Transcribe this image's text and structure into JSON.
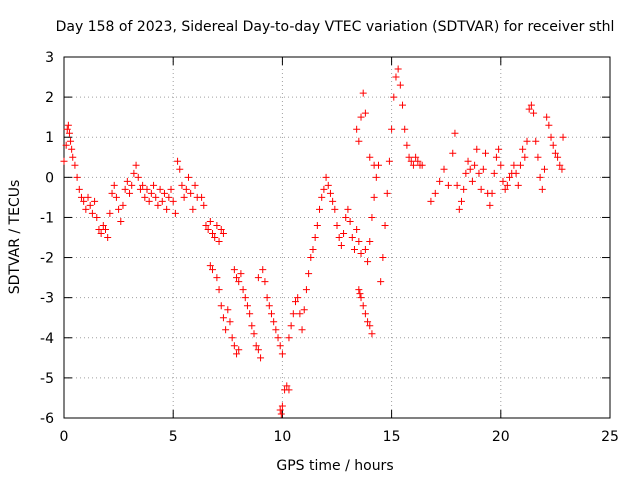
{
  "chart_data": {
    "type": "scatter",
    "title": "Day 158 of 2023, Sidereal Day-to-day VTEC variation (SDTVAR) for receiver sthl",
    "xlabel": "GPS time / hours",
    "ylabel": "SDTVAR / TECUs",
    "xlim": [
      0,
      25
    ],
    "ylim": [
      -6,
      3
    ],
    "xticks": [
      0,
      5,
      10,
      15,
      20,
      25
    ],
    "yticks": [
      -6,
      -5,
      -4,
      -3,
      -2,
      -1,
      0,
      1,
      2,
      3
    ],
    "grid": true,
    "marker": "+",
    "color": "#ff0000",
    "series": [
      {
        "name": "sthl",
        "points": [
          [
            0.0,
            0.4
          ],
          [
            0.1,
            0.8
          ],
          [
            0.15,
            1.2
          ],
          [
            0.2,
            1.3
          ],
          [
            0.25,
            1.1
          ],
          [
            0.3,
            0.9
          ],
          [
            0.35,
            0.7
          ],
          [
            0.4,
            0.5
          ],
          [
            0.5,
            0.3
          ],
          [
            0.6,
            0.0
          ],
          [
            0.7,
            -0.3
          ],
          [
            0.8,
            -0.5
          ],
          [
            0.9,
            -0.6
          ],
          [
            1.0,
            -0.8
          ],
          [
            1.1,
            -0.5
          ],
          [
            1.2,
            -0.7
          ],
          [
            1.3,
            -0.9
          ],
          [
            1.4,
            -0.6
          ],
          [
            1.5,
            -1.0
          ],
          [
            1.6,
            -1.3
          ],
          [
            1.7,
            -1.4
          ],
          [
            1.8,
            -1.2
          ],
          [
            1.9,
            -1.3
          ],
          [
            2.0,
            -1.5
          ],
          [
            2.1,
            -0.9
          ],
          [
            2.2,
            -0.4
          ],
          [
            2.3,
            -0.2
          ],
          [
            2.4,
            -0.5
          ],
          [
            2.5,
            -0.8
          ],
          [
            2.6,
            -1.1
          ],
          [
            2.7,
            -0.7
          ],
          [
            2.8,
            -0.3
          ],
          [
            2.9,
            -0.1
          ],
          [
            3.0,
            -0.4
          ],
          [
            3.1,
            -0.2
          ],
          [
            3.2,
            0.1
          ],
          [
            3.3,
            0.3
          ],
          [
            3.4,
            0.0
          ],
          [
            3.5,
            -0.3
          ],
          [
            3.6,
            -0.2
          ],
          [
            3.7,
            -0.5
          ],
          [
            3.8,
            -0.3
          ],
          [
            3.9,
            -0.6
          ],
          [
            4.0,
            -0.4
          ],
          [
            4.1,
            -0.2
          ],
          [
            4.2,
            -0.5
          ],
          [
            4.3,
            -0.7
          ],
          [
            4.4,
            -0.3
          ],
          [
            4.5,
            -0.6
          ],
          [
            4.6,
            -0.4
          ],
          [
            4.7,
            -0.8
          ],
          [
            4.8,
            -0.5
          ],
          [
            4.9,
            -0.3
          ],
          [
            5.0,
            -0.6
          ],
          [
            5.1,
            -0.9
          ],
          [
            5.2,
            0.4
          ],
          [
            5.3,
            0.2
          ],
          [
            5.4,
            -0.2
          ],
          [
            5.5,
            -0.5
          ],
          [
            5.6,
            -0.3
          ],
          [
            5.7,
            0.0
          ],
          [
            5.8,
            -0.4
          ],
          [
            5.9,
            -0.8
          ],
          [
            6.0,
            -0.2
          ],
          [
            6.1,
            -0.5
          ],
          [
            6.3,
            -0.5
          ],
          [
            6.4,
            -0.7
          ],
          [
            6.5,
            -1.2
          ],
          [
            6.6,
            -1.3
          ],
          [
            6.7,
            -1.1
          ],
          [
            6.8,
            -1.4
          ],
          [
            6.9,
            -1.5
          ],
          [
            7.0,
            -1.2
          ],
          [
            7.1,
            -1.6
          ],
          [
            7.2,
            -1.3
          ],
          [
            7.3,
            -1.4
          ],
          [
            6.7,
            -2.2
          ],
          [
            6.8,
            -2.3
          ],
          [
            7.0,
            -2.5
          ],
          [
            7.1,
            -2.8
          ],
          [
            7.2,
            -3.2
          ],
          [
            7.3,
            -3.5
          ],
          [
            7.4,
            -3.8
          ],
          [
            7.5,
            -3.3
          ],
          [
            7.6,
            -3.6
          ],
          [
            7.7,
            -4.0
          ],
          [
            7.8,
            -4.2
          ],
          [
            7.9,
            -4.4
          ],
          [
            8.0,
            -4.3
          ],
          [
            7.8,
            -2.3
          ],
          [
            7.9,
            -2.5
          ],
          [
            8.0,
            -2.6
          ],
          [
            8.1,
            -2.4
          ],
          [
            8.2,
            -2.8
          ],
          [
            8.3,
            -3.0
          ],
          [
            8.4,
            -3.2
          ],
          [
            8.5,
            -3.4
          ],
          [
            8.6,
            -3.7
          ],
          [
            8.7,
            -3.9
          ],
          [
            8.8,
            -4.2
          ],
          [
            8.9,
            -4.3
          ],
          [
            9.0,
            -4.5
          ],
          [
            8.9,
            -2.5
          ],
          [
            9.1,
            -2.3
          ],
          [
            9.2,
            -2.6
          ],
          [
            9.3,
            -3.0
          ],
          [
            9.4,
            -3.2
          ],
          [
            9.5,
            -3.4
          ],
          [
            9.6,
            -3.6
          ],
          [
            9.7,
            -3.8
          ],
          [
            9.8,
            -4.0
          ],
          [
            9.9,
            -4.2
          ],
          [
            10.0,
            -4.4
          ],
          [
            9.9,
            -5.8
          ],
          [
            9.95,
            -5.9
          ],
          [
            10.0,
            -5.7
          ],
          [
            10.1,
            -5.3
          ],
          [
            10.2,
            -5.2
          ],
          [
            10.3,
            -5.3
          ],
          [
            10.3,
            -4.0
          ],
          [
            10.4,
            -3.7
          ],
          [
            10.5,
            -3.4
          ],
          [
            10.6,
            -3.1
          ],
          [
            10.7,
            -3.0
          ],
          [
            10.8,
            -3.4
          ],
          [
            10.9,
            -3.8
          ],
          [
            11.0,
            -3.3
          ],
          [
            11.1,
            -2.8
          ],
          [
            11.2,
            -2.4
          ],
          [
            11.3,
            -2.0
          ],
          [
            11.4,
            -1.8
          ],
          [
            11.5,
            -1.5
          ],
          [
            11.6,
            -1.2
          ],
          [
            11.7,
            -0.8
          ],
          [
            11.8,
            -0.5
          ],
          [
            11.9,
            -0.3
          ],
          [
            12.0,
            0.0
          ],
          [
            12.1,
            -0.2
          ],
          [
            12.2,
            -0.4
          ],
          [
            12.3,
            -0.6
          ],
          [
            12.4,
            -0.8
          ],
          [
            12.5,
            -1.2
          ],
          [
            12.6,
            -1.5
          ],
          [
            12.7,
            -1.7
          ],
          [
            12.8,
            -1.4
          ],
          [
            12.9,
            -1.0
          ],
          [
            13.0,
            -0.8
          ],
          [
            13.1,
            -1.1
          ],
          [
            13.2,
            -1.5
          ],
          [
            13.3,
            -1.8
          ],
          [
            13.4,
            -1.3
          ],
          [
            13.5,
            -1.6
          ],
          [
            13.6,
            -1.9
          ],
          [
            13.5,
            -2.8
          ],
          [
            13.55,
            -2.9
          ],
          [
            13.6,
            -3.0
          ],
          [
            13.7,
            -3.2
          ],
          [
            13.8,
            -3.4
          ],
          [
            13.9,
            -3.6
          ],
          [
            14.0,
            -3.7
          ],
          [
            14.1,
            -3.9
          ],
          [
            13.8,
            -1.8
          ],
          [
            13.9,
            -2.1
          ],
          [
            14.0,
            -1.6
          ],
          [
            14.1,
            -1.0
          ],
          [
            14.2,
            -0.5
          ],
          [
            14.3,
            0.0
          ],
          [
            14.4,
            0.3
          ],
          [
            13.4,
            1.2
          ],
          [
            13.5,
            0.9
          ],
          [
            13.6,
            1.5
          ],
          [
            13.7,
            2.1
          ],
          [
            13.8,
            1.6
          ],
          [
            14.0,
            0.5
          ],
          [
            14.2,
            0.3
          ],
          [
            14.5,
            -2.6
          ],
          [
            14.6,
            -2.0
          ],
          [
            14.7,
            -1.2
          ],
          [
            14.8,
            -0.4
          ],
          [
            14.9,
            0.4
          ],
          [
            15.0,
            1.2
          ],
          [
            15.1,
            2.0
          ],
          [
            15.2,
            2.5
          ],
          [
            15.3,
            2.7
          ],
          [
            15.4,
            2.3
          ],
          [
            15.5,
            1.8
          ],
          [
            15.6,
            1.2
          ],
          [
            15.7,
            0.8
          ],
          [
            15.8,
            0.5
          ],
          [
            15.9,
            0.4
          ],
          [
            16.0,
            0.3
          ],
          [
            16.1,
            0.5
          ],
          [
            16.2,
            0.4
          ],
          [
            16.3,
            0.3
          ],
          [
            16.4,
            0.3
          ],
          [
            16.8,
            -0.6
          ],
          [
            17.0,
            -0.4
          ],
          [
            17.2,
            -0.1
          ],
          [
            17.4,
            0.2
          ],
          [
            17.6,
            -0.2
          ],
          [
            17.8,
            0.6
          ],
          [
            17.9,
            1.1
          ],
          [
            18.0,
            -0.2
          ],
          [
            18.1,
            -0.8
          ],
          [
            18.2,
            -0.6
          ],
          [
            18.3,
            -0.3
          ],
          [
            18.4,
            0.1
          ],
          [
            18.5,
            0.4
          ],
          [
            18.6,
            0.2
          ],
          [
            18.7,
            -0.1
          ],
          [
            18.8,
            0.3
          ],
          [
            18.9,
            0.7
          ],
          [
            19.0,
            0.1
          ],
          [
            19.1,
            -0.3
          ],
          [
            19.2,
            0.2
          ],
          [
            19.3,
            0.6
          ],
          [
            19.4,
            -0.4
          ],
          [
            19.5,
            -0.7
          ],
          [
            19.6,
            -0.4
          ],
          [
            19.7,
            0.1
          ],
          [
            19.8,
            0.5
          ],
          [
            19.9,
            0.7
          ],
          [
            20.0,
            0.3
          ],
          [
            20.1,
            -0.1
          ],
          [
            20.2,
            -0.3
          ],
          [
            20.3,
            -0.2
          ],
          [
            20.4,
            0.0
          ],
          [
            20.5,
            0.1
          ],
          [
            20.6,
            0.3
          ],
          [
            20.7,
            0.1
          ],
          [
            20.8,
            -0.2
          ],
          [
            20.9,
            0.3
          ],
          [
            21.0,
            0.7
          ],
          [
            21.1,
            0.5
          ],
          [
            21.2,
            0.9
          ],
          [
            21.3,
            1.7
          ],
          [
            21.4,
            1.8
          ],
          [
            21.5,
            1.6
          ],
          [
            21.6,
            0.9
          ],
          [
            21.7,
            0.5
          ],
          [
            21.8,
            0.0
          ],
          [
            21.9,
            -0.3
          ],
          [
            22.0,
            0.2
          ],
          [
            22.1,
            1.5
          ],
          [
            22.2,
            1.3
          ],
          [
            22.3,
            1.0
          ],
          [
            22.4,
            0.8
          ],
          [
            22.5,
            0.6
          ],
          [
            22.6,
            0.5
          ],
          [
            22.7,
            0.3
          ],
          [
            22.8,
            0.2
          ],
          [
            22.85,
            1.0
          ]
        ]
      }
    ]
  }
}
